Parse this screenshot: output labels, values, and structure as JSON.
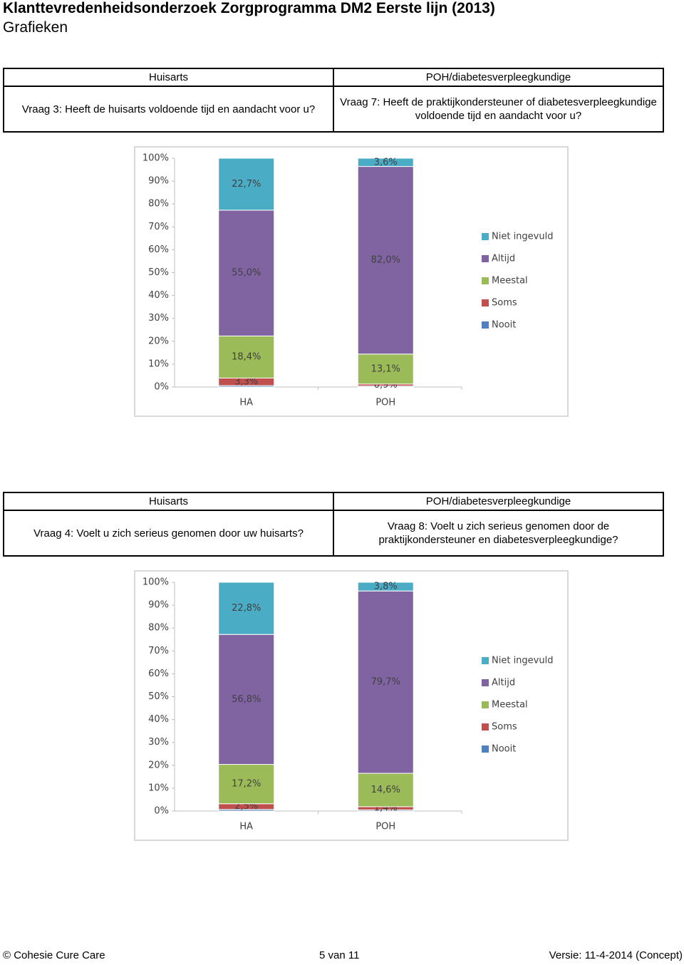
{
  "header": {
    "title": "Klanttevredenheidsonderzoek Zorgprogramma DM2 Eerste lijn (2013)",
    "subtitle": "Grafieken"
  },
  "sections": [
    {
      "left_header": "Huisarts",
      "right_header": "POH/diabetesverpleegkundige",
      "left_question": "Vraag 3: Heeft de huisarts voldoende tijd en aandacht voor u?",
      "right_question": "Vraag 7: Heeft de praktijkondersteuner of diabetesverpleegkundige voldoende tijd en aandacht voor u?"
    },
    {
      "left_header": "Huisarts",
      "right_header": "POH/diabetesverpleegkundige",
      "left_question": "Vraag 4: Voelt u zich serieus genomen door uw huisarts?",
      "right_question": "Vraag 8: Voelt u zich serieus genomen door de praktijkondersteuner en diabetesverpleegkundige?"
    }
  ],
  "chart_data": [
    {
      "type": "stacked-bar",
      "categories": [
        "HA",
        "POH"
      ],
      "series": [
        {
          "name": "Nooit",
          "color": "#4f81bd",
          "values": [
            0.6,
            0.4
          ],
          "value_labels": [
            null,
            null
          ]
        },
        {
          "name": "Soms",
          "color": "#c0504d",
          "values": [
            3.3,
            0.9
          ],
          "value_labels": [
            "3,3%",
            "0,9%"
          ]
        },
        {
          "name": "Meestal",
          "color": "#9bbb59",
          "values": [
            18.4,
            13.1
          ],
          "value_labels": [
            "18,4%",
            "13,1%"
          ]
        },
        {
          "name": "Altijd",
          "color": "#8064a2",
          "values": [
            55.0,
            82.0
          ],
          "value_labels": [
            "55,0%",
            "82,0%"
          ]
        },
        {
          "name": "Niet ingevuld",
          "color": "#4bacc6",
          "values": [
            22.7,
            3.6
          ],
          "value_labels": [
            "22,7%",
            "3,6%"
          ]
        }
      ],
      "ylim": [
        0,
        100
      ],
      "yticks": [
        {
          "value": 0,
          "label": "0%"
        },
        {
          "value": 10,
          "label": "10%"
        },
        {
          "value": 20,
          "label": "20%"
        },
        {
          "value": 30,
          "label": "30%"
        },
        {
          "value": 40,
          "label": "40%"
        },
        {
          "value": 50,
          "label": "50%"
        },
        {
          "value": 60,
          "label": "60%"
        },
        {
          "value": 70,
          "label": "70%"
        },
        {
          "value": 80,
          "label": "80%"
        },
        {
          "value": 90,
          "label": "90%"
        },
        {
          "value": 100,
          "label": "100%"
        }
      ],
      "legend": "right"
    },
    {
      "type": "stacked-bar",
      "categories": [
        "HA",
        "POH"
      ],
      "series": [
        {
          "name": "Nooit",
          "color": "#4f81bd",
          "values": [
            0.7,
            0.5
          ],
          "value_labels": [
            null,
            null
          ]
        },
        {
          "name": "Soms",
          "color": "#c0504d",
          "values": [
            2.5,
            1.4
          ],
          "value_labels": [
            "2,5%",
            "1,4%"
          ]
        },
        {
          "name": "Meestal",
          "color": "#9bbb59",
          "values": [
            17.2,
            14.6
          ],
          "value_labels": [
            "17,2%",
            "14,6%"
          ]
        },
        {
          "name": "Altijd",
          "color": "#8064a2",
          "values": [
            56.8,
            79.7
          ],
          "value_labels": [
            "56,8%",
            "79,7%"
          ]
        },
        {
          "name": "Niet ingevuld",
          "color": "#4bacc6",
          "values": [
            22.8,
            3.8
          ],
          "value_labels": [
            "22,8%",
            "3,8%"
          ]
        }
      ],
      "ylim": [
        0,
        100
      ],
      "yticks": [
        {
          "value": 0,
          "label": "0%"
        },
        {
          "value": 10,
          "label": "10%"
        },
        {
          "value": 20,
          "label": "20%"
        },
        {
          "value": 30,
          "label": "30%"
        },
        {
          "value": 40,
          "label": "40%"
        },
        {
          "value": 50,
          "label": "50%"
        },
        {
          "value": 60,
          "label": "60%"
        },
        {
          "value": 70,
          "label": "70%"
        },
        {
          "value": 80,
          "label": "80%"
        },
        {
          "value": 90,
          "label": "90%"
        },
        {
          "value": 100,
          "label": "100%"
        }
      ],
      "legend": "right"
    }
  ],
  "footer": {
    "left": "© Cohesie Cure Care",
    "center": "5 van 11",
    "right": "Versie: 11-4-2014 (Concept)"
  }
}
